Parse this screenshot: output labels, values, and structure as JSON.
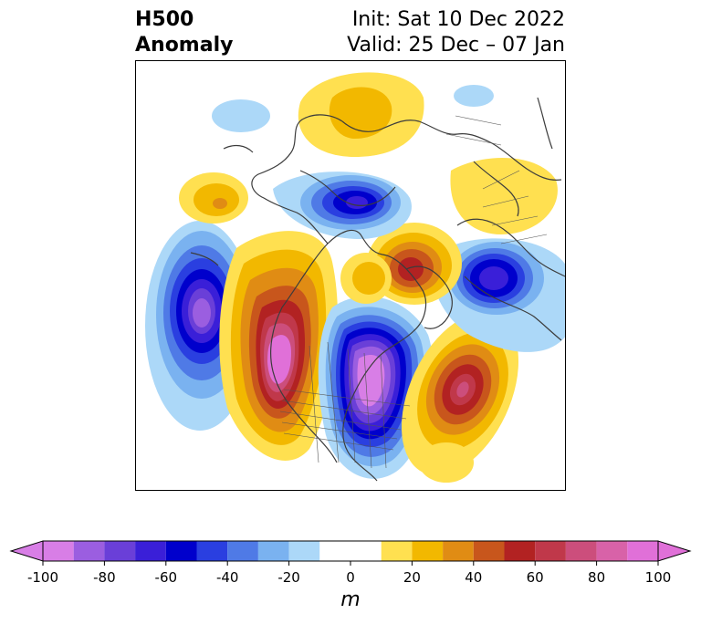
{
  "title": {
    "left_line1": "H500",
    "left_line2": "Anomaly",
    "right_line1": "Init: Sat 10 Dec 2022",
    "right_line2": "Valid: 25 Dec – 07 Jan"
  },
  "colorbar": {
    "unit": "m",
    "ticks": [
      "-100",
      "-80",
      "-60",
      "-40",
      "-20",
      "0",
      "20",
      "40",
      "60",
      "80",
      "100"
    ],
    "tick_values": [
      -100,
      -80,
      -60,
      -40,
      -20,
      0,
      20,
      40,
      60,
      80,
      100
    ],
    "levels": [
      -100,
      -90,
      -80,
      -70,
      -60,
      -50,
      -40,
      -30,
      -20,
      -10,
      10,
      20,
      30,
      40,
      50,
      60,
      70,
      80,
      90,
      100
    ],
    "colors": [
      "#d87ee6",
      "#9b5ee0",
      "#6a3fd8",
      "#3a1fd8",
      "#0000cc",
      "#2a3fe0",
      "#4f7ae6",
      "#7ab2f0",
      "#acd8f8",
      "#ffffff",
      "#ffe050",
      "#f2b800",
      "#e08c14",
      "#c8561c",
      "#b22222",
      "#c0384a",
      "#cc4e7c",
      "#d862a8",
      "#e070d8"
    ],
    "under_color": "#d87ee6",
    "over_color": "#e070d8"
  },
  "anomalies": [
    {
      "label": "north-pacific-low",
      "min": -100
    },
    {
      "label": "western-north-america-ridge",
      "max": 90
    },
    {
      "label": "central-north-america-trough",
      "min": -100
    },
    {
      "label": "north-atlantic-ridge",
      "max": 70
    },
    {
      "label": "europe-low",
      "min": -60
    },
    {
      "label": "northern-europe-ridge",
      "max": 60
    },
    {
      "label": "polar-vortex-low",
      "min": -60
    }
  ]
}
